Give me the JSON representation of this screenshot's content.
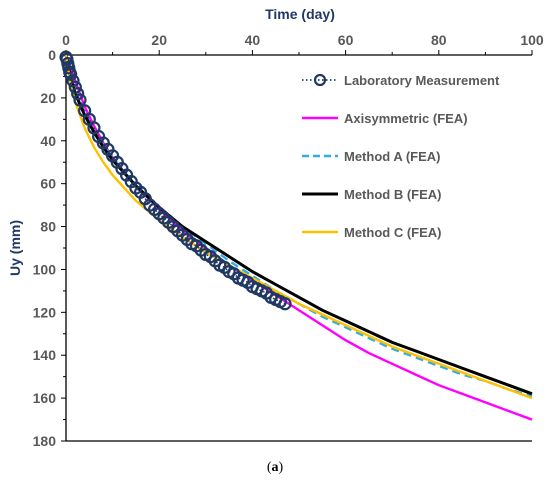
{
  "chart_data": {
    "type": "line",
    "xlabel": "Time (day)",
    "ylabel": "Uy (mm)",
    "xlim": [
      0,
      100
    ],
    "ylim": [
      0,
      180
    ],
    "y_inverted": true,
    "x_axis_position": "top",
    "x_ticks": [
      0,
      20,
      40,
      60,
      80,
      100
    ],
    "y_ticks": [
      0,
      20,
      40,
      60,
      80,
      100,
      120,
      140,
      160,
      180
    ],
    "grid": false,
    "legend_position": "top-right",
    "caption_prefix": "(",
    "caption_letter": "a",
    "caption_suffix": ")",
    "series": [
      {
        "name": "Laboratory Measurement",
        "style": "markers-dotted",
        "color": "#1f3864",
        "x": [
          0,
          0.2,
          0.4,
          0.6,
          0.8,
          1,
          1.5,
          2,
          2.5,
          3,
          4,
          5,
          6,
          7,
          8,
          9,
          10,
          11,
          12,
          13,
          14,
          15,
          16,
          17,
          18,
          19,
          20,
          21,
          22,
          23,
          24,
          25,
          26,
          27,
          28,
          29,
          30,
          31,
          32,
          33,
          34,
          35,
          36,
          37,
          38,
          39,
          40,
          41,
          42,
          43,
          44,
          45,
          46,
          47
        ],
        "y": [
          1,
          2,
          4,
          6,
          8,
          9,
          12,
          15,
          18,
          21,
          26,
          30,
          34,
          38,
          41,
          44,
          47,
          50,
          53,
          56,
          59,
          62,
          64,
          67,
          70,
          72,
          74,
          76,
          78,
          80,
          82,
          84,
          86,
          88,
          89,
          91,
          93,
          94,
          96,
          98,
          99,
          101,
          102,
          104,
          105,
          106,
          108,
          109,
          110,
          111,
          113,
          114,
          115,
          116
        ]
      },
      {
        "name": "Axisymmetric (FEA)",
        "style": "solid",
        "color": "#ff00ff",
        "x": [
          0,
          1,
          2,
          4,
          6,
          8,
          10,
          15,
          20,
          25,
          30,
          35,
          40,
          45,
          50,
          55,
          60,
          65,
          70,
          75,
          80,
          85,
          90,
          95,
          100
        ],
        "y": [
          0,
          6,
          12,
          24,
          33,
          41,
          48,
          61,
          72,
          82,
          90,
          98,
          105,
          112,
          119,
          126,
          133,
          139,
          144,
          149,
          154,
          158,
          162,
          166,
          170
        ]
      },
      {
        "name": "Method A (FEA)",
        "style": "dashed",
        "color": "#2eaee6",
        "x": [
          0,
          1,
          2,
          4,
          6,
          8,
          10,
          15,
          20,
          25,
          30,
          35,
          40,
          45,
          50,
          55,
          60,
          65,
          70,
          75,
          80,
          85,
          90,
          95,
          100
        ],
        "y": [
          0,
          10,
          17,
          27,
          35,
          42,
          48,
          61,
          71,
          80,
          88,
          96,
          103,
          110,
          116,
          122,
          127,
          132,
          137,
          141,
          145,
          149,
          152,
          156,
          159
        ]
      },
      {
        "name": "Method B (FEA)",
        "style": "solid",
        "color": "#000000",
        "x": [
          0,
          1,
          2,
          4,
          6,
          8,
          10,
          15,
          20,
          25,
          30,
          35,
          40,
          45,
          50,
          55,
          60,
          65,
          70,
          75,
          80,
          85,
          90,
          95,
          100
        ],
        "y": [
          0,
          11,
          18,
          28,
          36,
          43,
          49,
          61,
          71,
          80,
          87,
          94,
          101,
          107,
          113,
          119,
          124,
          129,
          134,
          138,
          142,
          146,
          150,
          154,
          158
        ]
      },
      {
        "name": "Method C (FEA)",
        "style": "solid",
        "color": "#ffc000",
        "x": [
          0,
          1,
          2,
          4,
          6,
          8,
          10,
          15,
          20,
          25,
          30,
          35,
          40,
          45,
          50,
          55,
          60,
          65,
          70,
          75,
          80,
          85,
          90,
          95,
          100
        ],
        "y": [
          0,
          14,
          22,
          34,
          43,
          50,
          56,
          68,
          77,
          85,
          92,
          98,
          104,
          110,
          116,
          121,
          126,
          131,
          136,
          140,
          144,
          148,
          152,
          156,
          160
        ]
      }
    ]
  }
}
